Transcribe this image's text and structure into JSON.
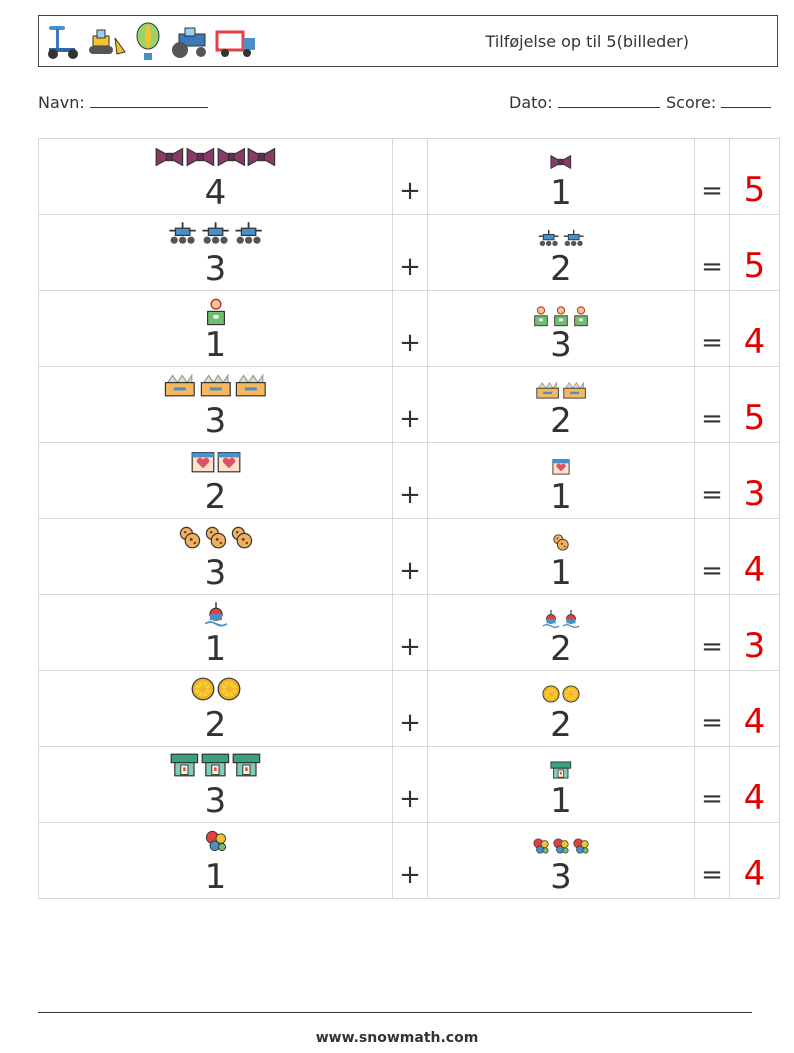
{
  "header": {
    "title": "Tilføjelse op til 5(billeder)",
    "icons": [
      "scooter-icon",
      "bulldozer-icon",
      "hot-air-balloon-icon",
      "tractor-icon",
      "truck-icon"
    ]
  },
  "fields": {
    "name_label": "Navn:",
    "date_label": "Dato:",
    "score_label": "Score:"
  },
  "symbols": {
    "plus": "+",
    "equals": "="
  },
  "problems": [
    {
      "icon": "bowtie-icon",
      "a": "4",
      "b": "1",
      "answer": "5"
    },
    {
      "icon": "rover-icon",
      "a": "3",
      "b": "2",
      "answer": "5"
    },
    {
      "icon": "person-icon",
      "a": "1",
      "b": "3",
      "answer": "4"
    },
    {
      "icon": "box-icon",
      "a": "3",
      "b": "2",
      "answer": "5"
    },
    {
      "icon": "calendar-heart-icon",
      "a": "2",
      "b": "1",
      "answer": "3"
    },
    {
      "icon": "cookie-icon",
      "a": "3",
      "b": "1",
      "answer": "4"
    },
    {
      "icon": "buoy-icon",
      "a": "1",
      "b": "2",
      "answer": "3"
    },
    {
      "icon": "orange-slice-icon",
      "a": "2",
      "b": "2",
      "answer": "4"
    },
    {
      "icon": "atm-icon",
      "a": "3",
      "b": "1",
      "answer": "4"
    },
    {
      "icon": "balloons-icon",
      "a": "1",
      "b": "3",
      "answer": "4"
    }
  ],
  "colors": {
    "answer": "#e00000",
    "border": "#d8d8d8"
  },
  "footer": {
    "url": "www.snowmath.com"
  }
}
